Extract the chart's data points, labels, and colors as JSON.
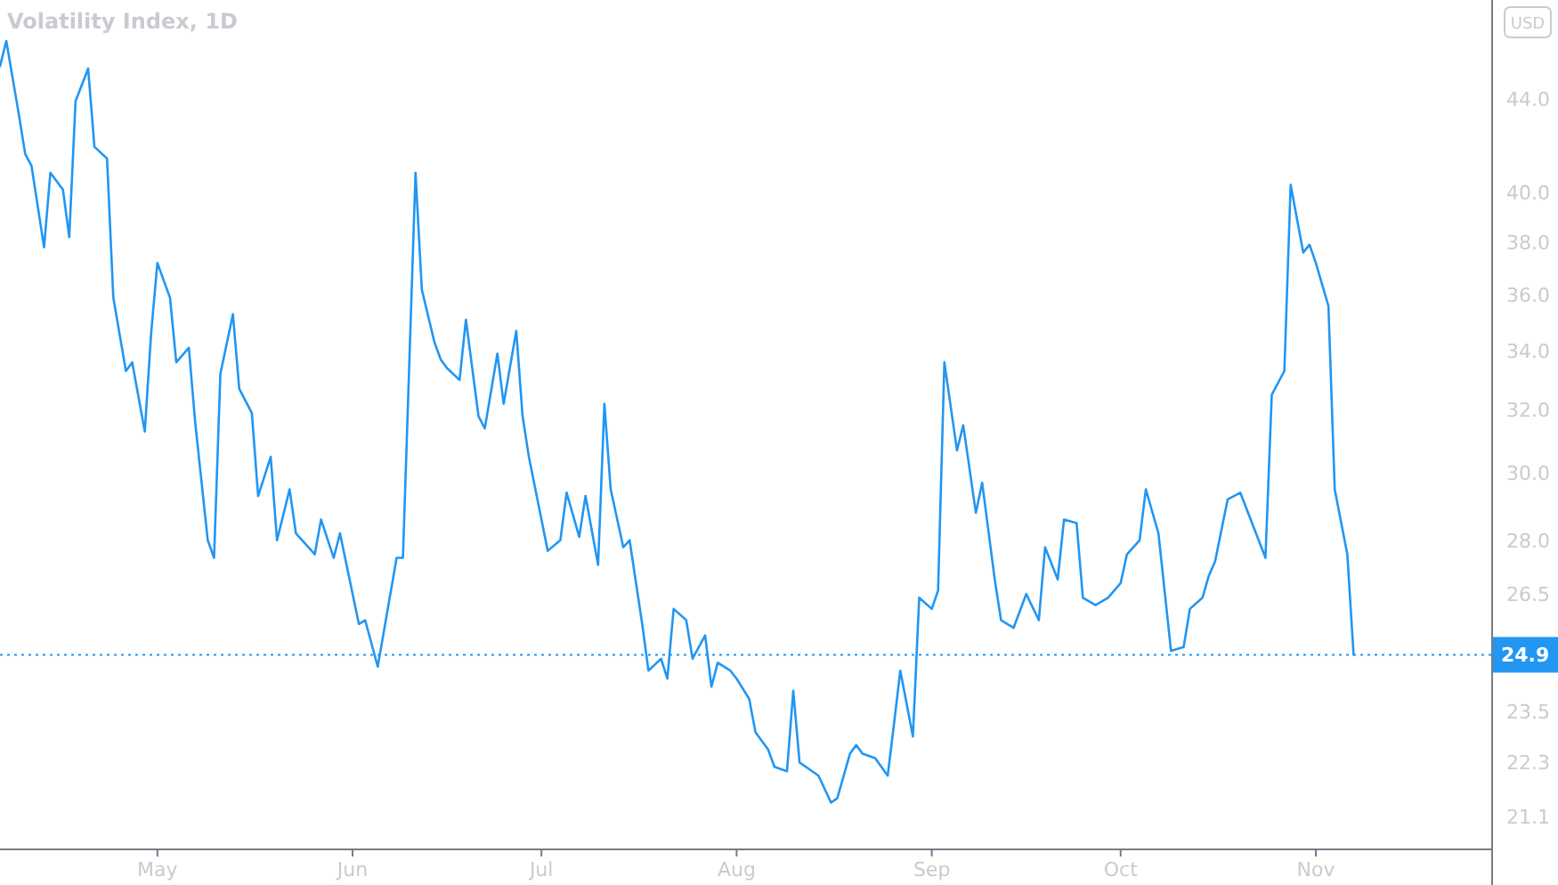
{
  "chart_data": {
    "type": "line",
    "title": "Volatility Index, 1D",
    "annotations": [
      "USD"
    ],
    "x": [
      "--04-06",
      "--04-07",
      "--04-09",
      "--04-10",
      "--04-11",
      "--04-13",
      "--04-14",
      "--04-16",
      "--04-17",
      "--04-18",
      "--04-20",
      "--04-21",
      "--04-23",
      "--04-24",
      "--04-26",
      "--04-27",
      "--04-29",
      "--04-30",
      "--05-01",
      "--05-03",
      "--05-04",
      "--05-06",
      "--05-07",
      "--05-09",
      "--05-10",
      "--05-11",
      "--05-13",
      "--05-14",
      "--05-16",
      "--05-17",
      "--05-19",
      "--05-20",
      "--05-22",
      "--05-23",
      "--05-24",
      "--05-26",
      "--05-27",
      "--05-29",
      "--05-30",
      "--06-02",
      "--06-03",
      "--06-05",
      "--06-08",
      "--06-09",
      "--06-11",
      "--06-12",
      "--06-14",
      "--06-15",
      "--06-16",
      "--06-18",
      "--06-19",
      "--06-21",
      "--06-22",
      "--06-24",
      "--06-25",
      "--06-27",
      "--06-28",
      "--06-29",
      "--07-01",
      "--07-02",
      "--07-04",
      "--07-05",
      "--07-07",
      "--07-08",
      "--07-10",
      "--07-11",
      "--07-12",
      "--07-14",
      "--07-15",
      "--07-17",
      "--07-18",
      "--07-20",
      "--07-21",
      "--07-22",
      "--07-24",
      "--07-25",
      "--07-27",
      "--07-28",
      "--07-29",
      "--07-31",
      "--08-01",
      "--08-03",
      "--08-04",
      "--08-06",
      "--08-07",
      "--08-09",
      "--08-10",
      "--08-11",
      "--08-13",
      "--08-14",
      "--08-16",
      "--08-17",
      "--08-19",
      "--08-20",
      "--08-21",
      "--08-23",
      "--08-25",
      "--08-26",
      "--08-27",
      "--08-29",
      "--08-30",
      "--09-01",
      "--09-02",
      "--09-03",
      "--09-05",
      "--09-06",
      "--09-08",
      "--09-09",
      "--09-11",
      "--09-12",
      "--09-14",
      "--09-16",
      "--09-18",
      "--09-19",
      "--09-21",
      "--09-22",
      "--09-24",
      "--09-25",
      "--09-27",
      "--09-29",
      "--10-01",
      "--10-02",
      "--10-04",
      "--10-05",
      "--10-07",
      "--10-09",
      "--10-11",
      "--10-12",
      "--10-14",
      "--10-15",
      "--10-16",
      "--10-18",
      "--10-20",
      "--10-24",
      "--10-25",
      "--10-27",
      "--10-28",
      "--10-30",
      "--10-31",
      "--11-01",
      "--11-03",
      "--11-04",
      "--11-06",
      "--11-07"
    ],
    "series": [
      {
        "color": "#2196f3",
        "values": [
          45.5,
          46.7,
          43.3,
          41.6,
          41.1,
          37.8,
          40.8,
          40.1,
          38.2,
          43.9,
          45.4,
          41.9,
          41.4,
          35.9,
          33.3,
          33.6,
          31.3,
          34.6,
          37.2,
          35.9,
          33.6,
          34.1,
          31.6,
          28.0,
          27.5,
          33.2,
          35.3,
          32.7,
          31.9,
          29.3,
          30.5,
          28.0,
          29.5,
          28.2,
          28.0,
          27.6,
          28.6,
          27.5,
          28.2,
          25.7,
          25.8,
          24.6,
          27.5,
          27.5,
          40.8,
          36.2,
          34.3,
          33.7,
          33.4,
          33.0,
          35.1,
          31.8,
          31.4,
          33.9,
          32.2,
          34.7,
          31.8,
          30.5,
          28.6,
          27.7,
          28.0,
          29.4,
          28.1,
          29.3,
          27.3,
          32.2,
          29.5,
          27.8,
          28.0,
          25.7,
          24.5,
          24.8,
          24.3,
          26.1,
          25.8,
          24.8,
          25.4,
          24.1,
          24.7,
          24.5,
          24.3,
          23.8,
          23.0,
          22.6,
          22.2,
          22.1,
          24.0,
          22.3,
          22.1,
          22.0,
          21.4,
          21.5,
          22.5,
          22.7,
          22.5,
          22.4,
          22.0,
          23.2,
          24.5,
          22.9,
          26.4,
          26.1,
          26.6,
          33.6,
          30.7,
          31.5,
          28.8,
          29.7,
          26.9,
          25.8,
          25.6,
          26.5,
          25.8,
          27.8,
          26.9,
          28.6,
          28.5,
          26.4,
          26.2,
          26.4,
          26.8,
          27.6,
          28.0,
          29.5,
          28.2,
          25.0,
          25.1,
          26.1,
          26.4,
          27.0,
          27.4,
          29.2,
          29.4,
          27.5,
          32.5,
          33.3,
          40.3,
          37.6,
          37.9,
          37.2,
          35.6,
          29.5,
          27.6,
          24.9
        ]
      }
    ],
    "log": true,
    "ylim": [
      20.4,
      48.7
    ],
    "yticks": [
      21.1,
      22.3,
      23.5,
      26.5,
      {
        "value": 28,
        "label": "28.0"
      },
      {
        "value": 30,
        "label": "30.0"
      },
      {
        "value": 32,
        "label": "32.0"
      },
      {
        "value": 34,
        "label": "34.0"
      },
      {
        "value": 36,
        "label": "36.0"
      },
      {
        "value": 38,
        "label": "38.0"
      },
      {
        "value": 40,
        "label": "40.0"
      },
      {
        "value": 44,
        "label": "44.0"
      }
    ],
    "xlim": [
      "--04-06",
      "--11-29"
    ],
    "xticks": [
      {
        "value": "--05-01",
        "label": "May"
      },
      {
        "value": "--06-01",
        "label": "Jun"
      },
      {
        "value": "--07-01",
        "label": "Jul"
      },
      {
        "value": "--08-01",
        "label": "Aug"
      },
      {
        "value": "--09-01",
        "label": "Sep"
      },
      {
        "value": "--10-01",
        "label": "Oct"
      },
      {
        "value": "--11-01",
        "label": "Nov"
      }
    ],
    "ref_lines": [
      {
        "axis": "y",
        "value": 24.9,
        "label": "24.9",
        "color": "#2196f3",
        "line_style": "dotted"
      }
    ]
  }
}
